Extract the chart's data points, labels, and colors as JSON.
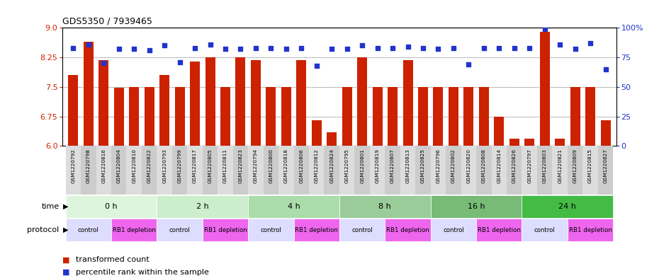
{
  "title": "GDS5350 / 7939465",
  "samples": [
    "GSM1220792",
    "GSM1220798",
    "GSM1220816",
    "GSM1220804",
    "GSM1220810",
    "GSM1220822",
    "GSM1220793",
    "GSM1220799",
    "GSM1220817",
    "GSM1220805",
    "GSM1220811",
    "GSM1220823",
    "GSM1220794",
    "GSM1220800",
    "GSM1220818",
    "GSM1220806",
    "GSM1220812",
    "GSM1220824",
    "GSM1220795",
    "GSM1220801",
    "GSM1220819",
    "GSM1220807",
    "GSM1220813",
    "GSM1220825",
    "GSM1220796",
    "GSM1220802",
    "GSM1220820",
    "GSM1220808",
    "GSM1220814",
    "GSM1220826",
    "GSM1220797",
    "GSM1220803",
    "GSM1220821",
    "GSM1220809",
    "GSM1220815",
    "GSM1220827"
  ],
  "bar_values": [
    7.8,
    8.65,
    8.18,
    7.47,
    7.5,
    7.5,
    7.8,
    7.5,
    8.15,
    8.25,
    7.5,
    8.25,
    8.18,
    7.5,
    7.5,
    8.18,
    6.65,
    6.35,
    7.5,
    8.25,
    7.5,
    7.5,
    8.18,
    7.5,
    7.5,
    7.5,
    7.5,
    7.5,
    6.75,
    6.18,
    6.18,
    8.9,
    6.18,
    7.5,
    7.5,
    6.65
  ],
  "percentile_values": [
    83,
    86,
    70,
    82,
    82,
    81,
    85,
    71,
    83,
    86,
    82,
    82,
    83,
    83,
    82,
    83,
    68,
    82,
    82,
    85,
    83,
    83,
    84,
    83,
    82,
    83,
    69,
    83,
    83,
    83,
    83,
    99,
    86,
    82,
    87,
    65
  ],
  "ylim_left": [
    6.0,
    9.0
  ],
  "ylim_right": [
    0,
    100
  ],
  "yticks_left": [
    6.0,
    6.75,
    7.5,
    8.25,
    9.0
  ],
  "yticks_right": [
    0,
    25,
    50,
    75,
    100
  ],
  "ytick_labels_right": [
    "0",
    "25",
    "50",
    "75",
    "100%"
  ],
  "bar_color": "#cc2200",
  "dot_color": "#2233cc",
  "time_groups": [
    {
      "label": "0 h",
      "start": 0,
      "end": 6,
      "color": "#ddf5dd"
    },
    {
      "label": "2 h",
      "start": 6,
      "end": 12,
      "color": "#cceecc"
    },
    {
      "label": "4 h",
      "start": 12,
      "end": 18,
      "color": "#aaddaa"
    },
    {
      "label": "8 h",
      "start": 18,
      "end": 24,
      "color": "#99cc99"
    },
    {
      "label": "16 h",
      "start": 24,
      "end": 30,
      "color": "#77bb77"
    },
    {
      "label": "24 h",
      "start": 30,
      "end": 36,
      "color": "#44bb44"
    }
  ],
  "protocol_groups": [
    {
      "label": "control",
      "start": 0,
      "end": 3,
      "color": "#ddddff"
    },
    {
      "label": "RB1 depletion",
      "start": 3,
      "end": 6,
      "color": "#ee66ee"
    },
    {
      "label": "control",
      "start": 6,
      "end": 9,
      "color": "#ddddff"
    },
    {
      "label": "RB1 depletion",
      "start": 9,
      "end": 12,
      "color": "#ee66ee"
    },
    {
      "label": "control",
      "start": 12,
      "end": 15,
      "color": "#ddddff"
    },
    {
      "label": "RB1 depletion",
      "start": 15,
      "end": 18,
      "color": "#ee66ee"
    },
    {
      "label": "control",
      "start": 18,
      "end": 21,
      "color": "#ddddff"
    },
    {
      "label": "RB1 depletion",
      "start": 21,
      "end": 24,
      "color": "#ee66ee"
    },
    {
      "label": "control",
      "start": 24,
      "end": 27,
      "color": "#ddddff"
    },
    {
      "label": "RB1 depletion",
      "start": 27,
      "end": 30,
      "color": "#ee66ee"
    },
    {
      "label": "control",
      "start": 30,
      "end": 33,
      "color": "#ddddff"
    },
    {
      "label": "RB1 depletion",
      "start": 33,
      "end": 36,
      "color": "#ee66ee"
    }
  ],
  "xtick_bg_color": "#dddddd",
  "legend": [
    {
      "label": "transformed count",
      "color": "#cc2200"
    },
    {
      "label": "percentile rank within the sample",
      "color": "#2233cc"
    }
  ]
}
